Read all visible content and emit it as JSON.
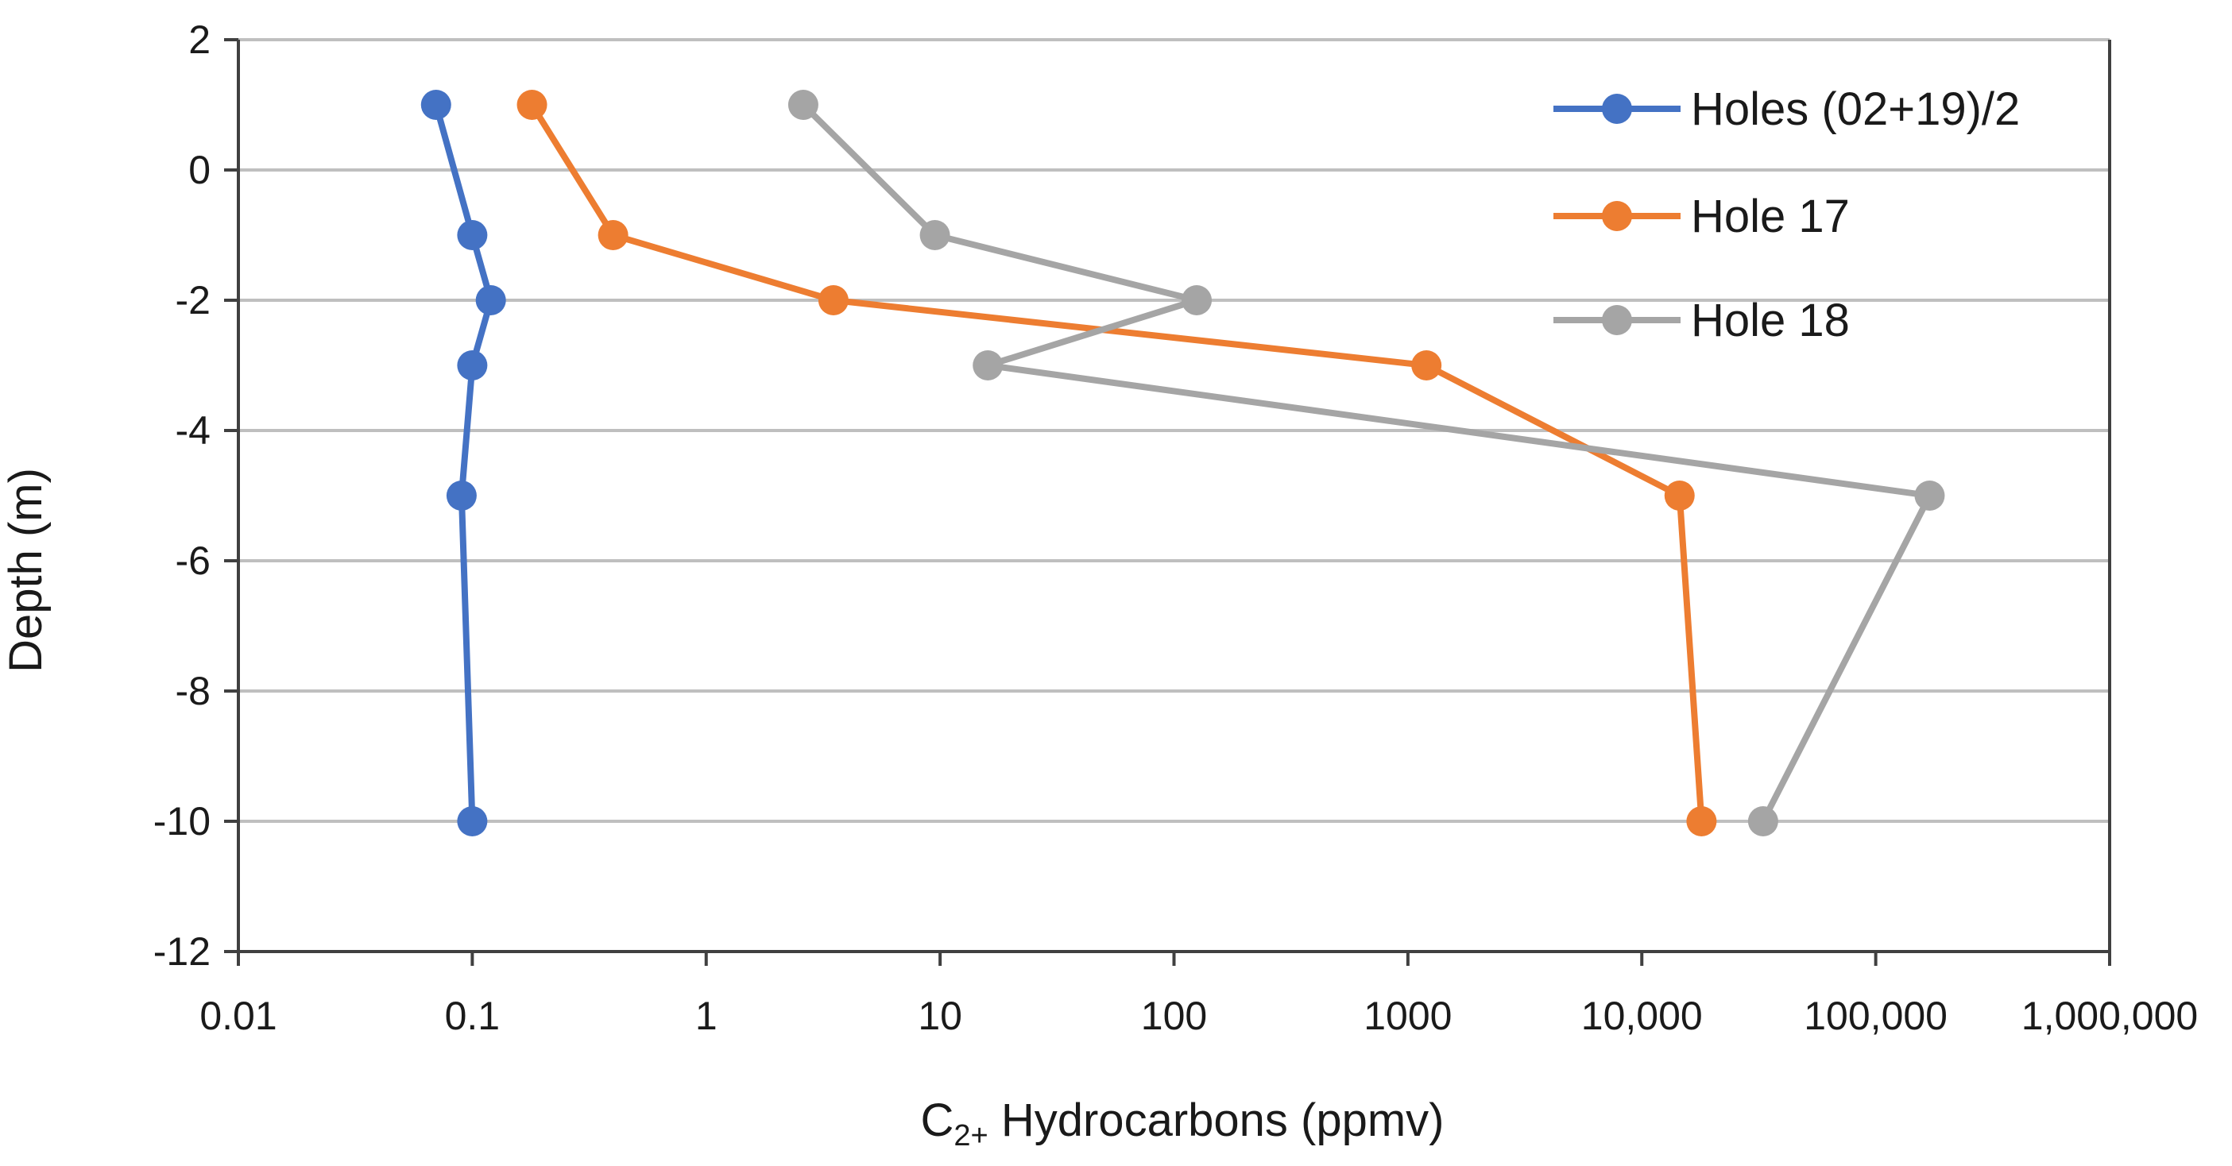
{
  "chart_data": {
    "type": "line",
    "title": "",
    "xlabel": {
      "main": "C",
      "subscript": "2+",
      "rest": " Hydrocarbons (ppmv)"
    },
    "ylabel": "Depth (m)",
    "xscale": "log",
    "xlim": [
      0.01,
      1000000
    ],
    "ylim": [
      -12,
      2
    ],
    "grid": "horizontal",
    "legend_position": "top-right",
    "x_ticks": [
      {
        "value": 0.01,
        "label": "0.01"
      },
      {
        "value": 0.1,
        "label": "0.1"
      },
      {
        "value": 1,
        "label": "1"
      },
      {
        "value": 10,
        "label": "10"
      },
      {
        "value": 100,
        "label": "100"
      },
      {
        "value": 1000,
        "label": "1000"
      },
      {
        "value": 10000,
        "label": "10,000"
      },
      {
        "value": 100000,
        "label": "100,000"
      },
      {
        "value": 1000000,
        "label": "1,000,000"
      }
    ],
    "y_ticks": [
      {
        "value": 2,
        "label": "2"
      },
      {
        "value": 0,
        "label": "0"
      },
      {
        "value": -2,
        "label": "-2"
      },
      {
        "value": -4,
        "label": "-4"
      },
      {
        "value": -6,
        "label": "-6"
      },
      {
        "value": -8,
        "label": "-8"
      },
      {
        "value": -10,
        "label": "-10"
      },
      {
        "value": -12,
        "label": "-12"
      }
    ],
    "series": [
      {
        "name": "Holes (02+19)/2",
        "color": "#4472C4",
        "points": [
          {
            "x": 0.07,
            "y": 1
          },
          {
            "x": 0.1,
            "y": -1
          },
          {
            "x": 0.12,
            "y": -2
          },
          {
            "x": 0.1,
            "y": -3
          },
          {
            "x": 0.09,
            "y": -5
          },
          {
            "x": 0.1,
            "y": -10
          }
        ]
      },
      {
        "name": "Hole 17",
        "color": "#ED7D31",
        "points": [
          {
            "x": 0.18,
            "y": 1
          },
          {
            "x": 0.4,
            "y": -1
          },
          {
            "x": 3.5,
            "y": -2
          },
          {
            "x": 1200,
            "y": -3
          },
          {
            "x": 14500,
            "y": -5
          },
          {
            "x": 18000,
            "y": -10
          }
        ]
      },
      {
        "name": "Hole 18",
        "color": "#A5A5A5",
        "points": [
          {
            "x": 2.6,
            "y": 1
          },
          {
            "x": 9.5,
            "y": -1
          },
          {
            "x": 125,
            "y": -2
          },
          {
            "x": 16,
            "y": -3
          },
          {
            "x": 170000,
            "y": -5
          },
          {
            "x": 33000,
            "y": -10
          }
        ]
      }
    ]
  }
}
